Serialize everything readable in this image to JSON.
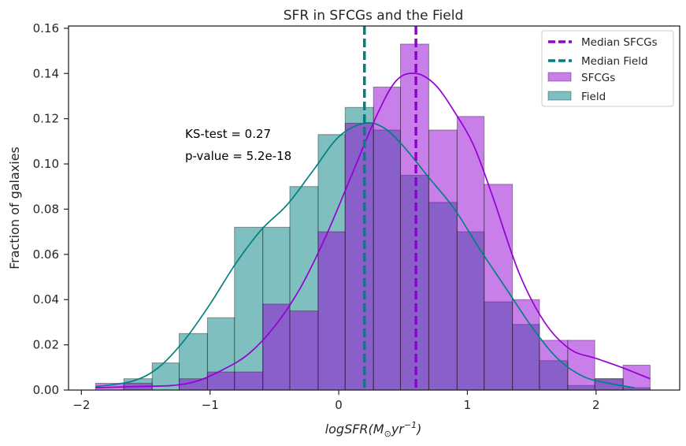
{
  "chart_data": {
    "type": "bar",
    "title": "SFR in SFCGs and the Field",
    "xlabel_text": "logSFR(M",
    "xlabel_sub": "⊙",
    "xlabel_text2": "yr",
    "xlabel_sup": "−1",
    "xlabel_close": ")",
    "ylabel": "Fraction of galaxies",
    "xlim": [
      -2.1,
      2.65
    ],
    "ylim": [
      0,
      0.161
    ],
    "xticks": [
      -2,
      -1,
      0,
      1,
      2
    ],
    "xtick_labels": [
      "−2",
      "−1",
      "0",
      "1",
      "2"
    ],
    "yticks": [
      0,
      0.02,
      0.04,
      0.06,
      0.08,
      0.1,
      0.12,
      0.14,
      0.16
    ],
    "ytick_labels": [
      "0.00",
      "0.02",
      "0.04",
      "0.06",
      "0.08",
      "0.10",
      "0.12",
      "0.14",
      "0.16"
    ],
    "bin_edges": [
      -1.89,
      -1.67,
      -1.45,
      -1.24,
      -1.02,
      -0.81,
      -0.59,
      -0.38,
      -0.16,
      0.05,
      0.27,
      0.48,
      0.7,
      0.92,
      1.13,
      1.35,
      1.56,
      1.78,
      1.99,
      2.21,
      2.42
    ],
    "series": [
      {
        "name": "SFCGs",
        "color": "#9400d3",
        "values": [
          0.003,
          0.003,
          0.0,
          0.005,
          0.008,
          0.008,
          0.038,
          0.035,
          0.07,
          0.118,
          0.134,
          0.153,
          0.115,
          0.121,
          0.091,
          0.04,
          0.022,
          0.022,
          0.005,
          0.011
        ],
        "kde_x": [
          -1.89,
          -1.6,
          -1.3,
          -1.1,
          -0.9,
          -0.7,
          -0.5,
          -0.3,
          -0.1,
          0.1,
          0.3,
          0.45,
          0.6,
          0.75,
          0.9,
          1.05,
          1.2,
          1.4,
          1.6,
          1.8,
          2.0,
          2.2,
          2.42
        ],
        "kde_y": [
          0.001,
          0.0015,
          0.002,
          0.004,
          0.009,
          0.016,
          0.028,
          0.045,
          0.068,
          0.095,
          0.122,
          0.137,
          0.14,
          0.135,
          0.123,
          0.108,
          0.085,
          0.052,
          0.03,
          0.018,
          0.014,
          0.01,
          0.005
        ]
      },
      {
        "name": "Field",
        "color": "#008080",
        "values": [
          0.0,
          0.005,
          0.012,
          0.025,
          0.032,
          0.072,
          0.072,
          0.09,
          0.113,
          0.125,
          0.115,
          0.095,
          0.083,
          0.07,
          0.039,
          0.029,
          0.013,
          0.002,
          0.005,
          0.001
        ],
        "kde_x": [
          -1.89,
          -1.6,
          -1.4,
          -1.2,
          -1.0,
          -0.8,
          -0.6,
          -0.4,
          -0.2,
          0.0,
          0.2,
          0.35,
          0.5,
          0.7,
          0.9,
          1.1,
          1.3,
          1.5,
          1.7,
          1.9,
          2.1,
          2.3
        ],
        "kde_y": [
          0.0015,
          0.004,
          0.01,
          0.022,
          0.038,
          0.056,
          0.071,
          0.082,
          0.097,
          0.112,
          0.118,
          0.116,
          0.108,
          0.094,
          0.08,
          0.062,
          0.045,
          0.028,
          0.014,
          0.006,
          0.003,
          0.001
        ]
      }
    ],
    "medians": [
      {
        "name": "Median SFCGs",
        "x": 0.6,
        "color": "#9400d3"
      },
      {
        "name": "Median Field",
        "x": 0.2,
        "color": "#008080"
      }
    ],
    "annotations": [
      "KS-test = 0.27",
      "p-value = 5.2e-18"
    ],
    "legend": {
      "placement": "top-right",
      "entries": [
        "Median SFCGs",
        "Median Field",
        "SFCGs",
        "Field"
      ]
    },
    "grid": false
  }
}
